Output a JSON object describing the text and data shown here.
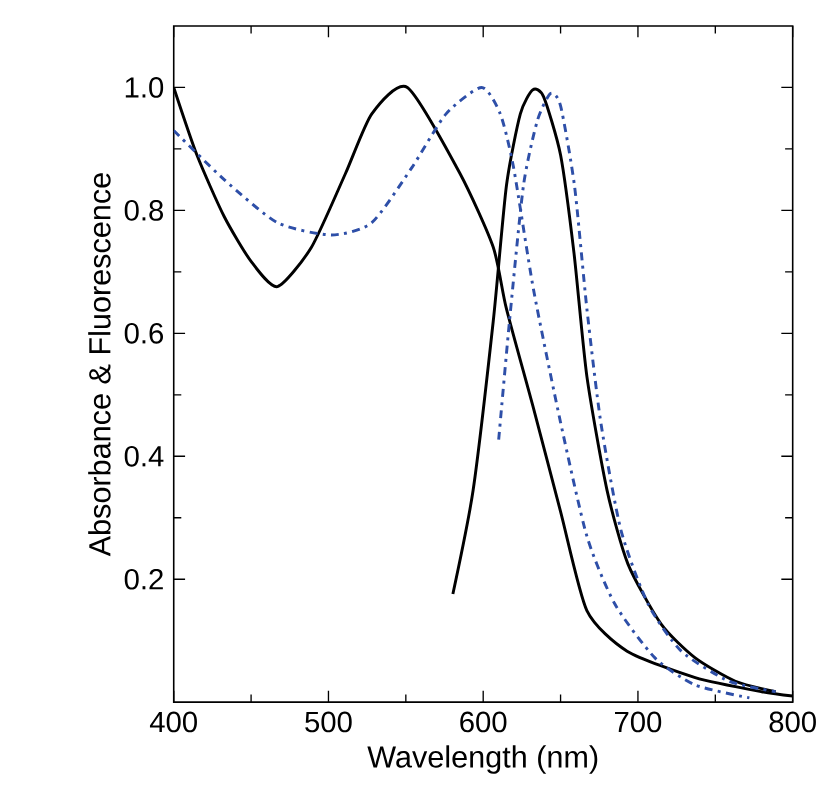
{
  "chart_data": {
    "type": "line",
    "xlabel": "Wavelength (nm)",
    "ylabel": "Absorbance & Fluorescence",
    "xlim": [
      400,
      800
    ],
    "ylim": [
      0,
      1.1
    ],
    "xticks": [
      400,
      500,
      600,
      700,
      800
    ],
    "yticks": [
      0.2,
      0.4,
      0.6,
      0.8,
      {
        "value": 1.0,
        "label": "1.0"
      }
    ],
    "grid": false,
    "marker": "none",
    "series": [
      {
        "color": "#000000",
        "line_style": "solid",
        "x": [
          400,
          415,
          432.6,
          450,
          467,
          489,
          511,
          528,
          551,
          585,
          606.5,
          615,
          632.6,
          650,
          667,
          693,
          737,
          780,
          800
        ],
        "values": [
          1.0,
          0.89,
          0.79,
          0.717,
          0.676,
          0.74,
          0.86,
          0.957,
          1.0,
          0.86,
          0.74,
          0.64,
          0.477,
          0.31,
          0.149,
          0.083,
          0.04,
          0.017,
          0.01
        ]
      },
      {
        "color": "#000000",
        "line_style": "solid",
        "x": [
          580.4,
          593.5,
          606.5,
          615,
          624,
          632,
          639,
          650,
          658.7,
          667,
          680,
          693.5,
          715,
          737,
          763,
          789
        ],
        "values": [
          0.176,
          0.345,
          0.62,
          0.84,
          0.957,
          0.996,
          0.985,
          0.89,
          0.73,
          0.53,
          0.345,
          0.225,
          0.127,
          0.072,
          0.034,
          0.017
        ]
      },
      {
        "color": "#2e4fa8",
        "line_style": "dashdot",
        "x": [
          400,
          432.6,
          467,
          502,
          528,
          554,
          576,
          599,
          611,
          619.6,
          632.6,
          650,
          667,
          685,
          711,
          737,
          772
        ],
        "values": [
          0.93,
          0.85,
          0.78,
          0.76,
          0.78,
          0.87,
          0.957,
          1.0,
          0.957,
          0.87,
          0.67,
          0.455,
          0.27,
          0.16,
          0.072,
          0.028,
          0.007
        ]
      },
      {
        "color": "#2e4fa8",
        "line_style": "dashdot",
        "x": [
          610,
          617,
          626,
          635,
          643.5,
          650,
          659,
          667,
          676,
          689,
          706.5,
          728,
          759,
          789
        ],
        "values": [
          0.427,
          0.62,
          0.84,
          0.946,
          0.99,
          0.97,
          0.84,
          0.64,
          0.455,
          0.28,
          0.16,
          0.083,
          0.034,
          0.017
        ]
      }
    ]
  }
}
